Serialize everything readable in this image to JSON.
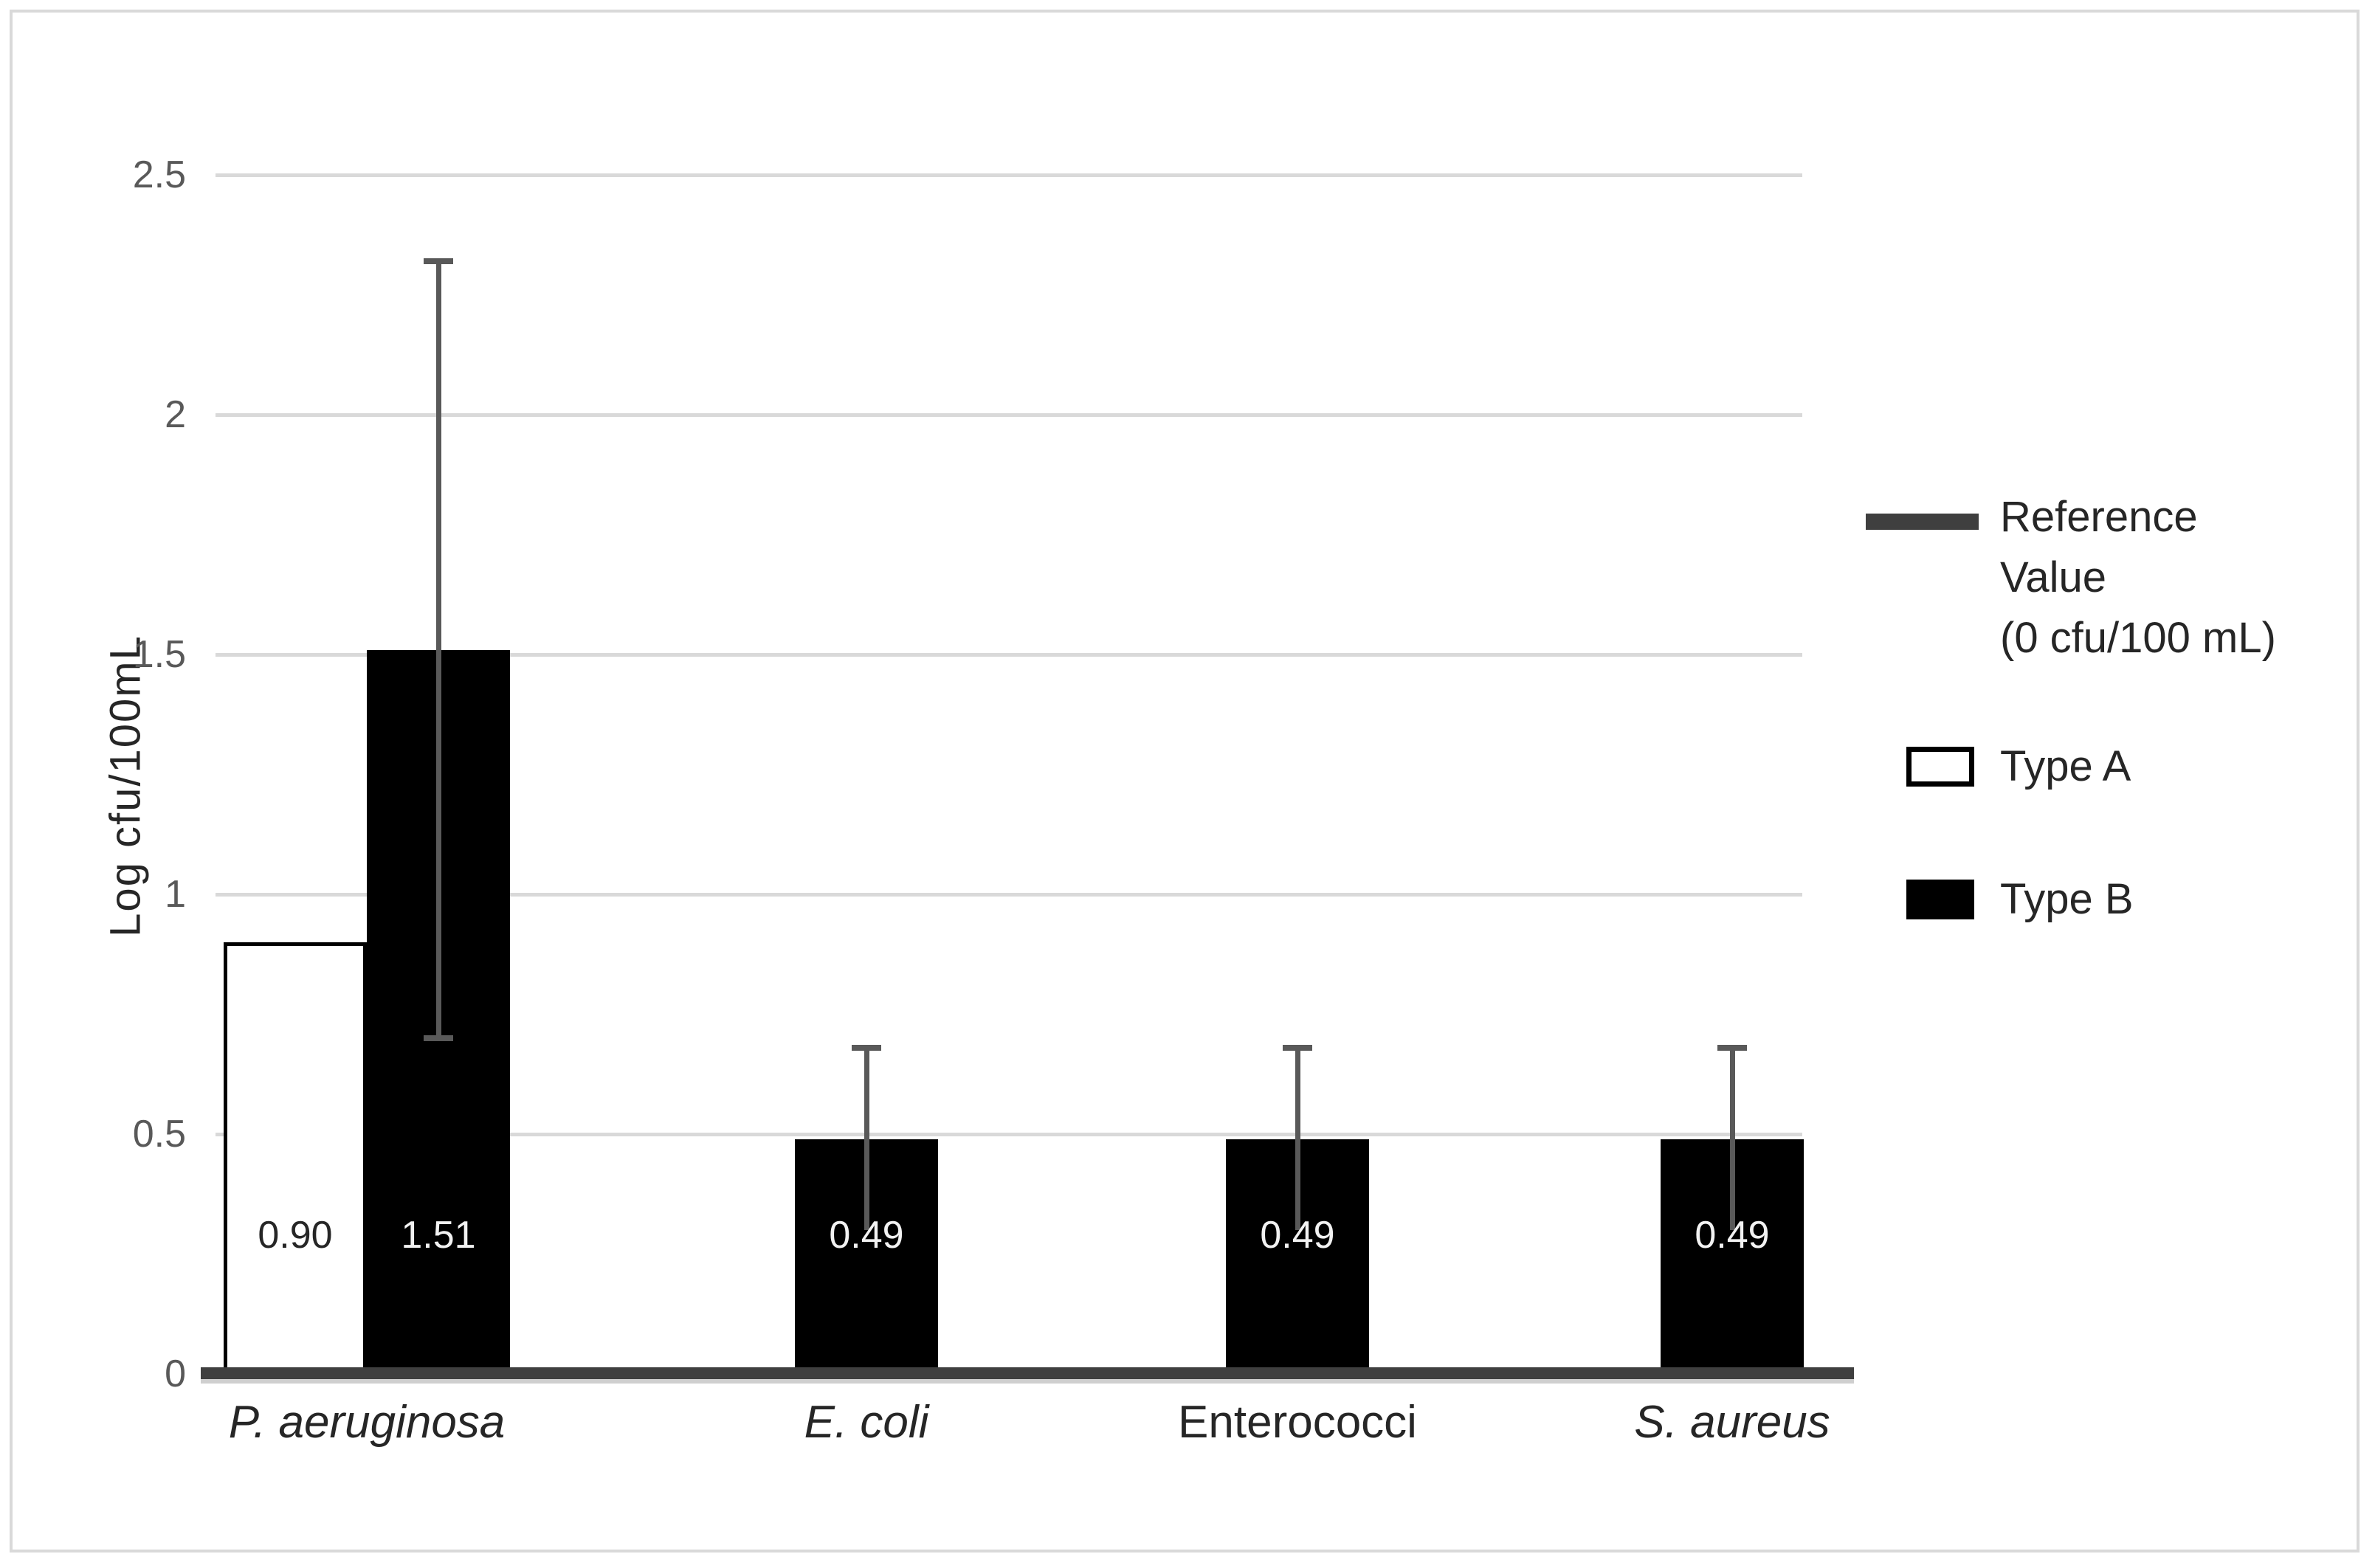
{
  "chart_data": {
    "type": "bar",
    "title": "",
    "xlabel": "",
    "ylabel": "Log cfu/100mL",
    "ylim": [
      0,
      2.5
    ],
    "ytick_values": [
      0,
      0.5,
      1,
      1.5,
      2,
      2.5
    ],
    "ytick_labels": [
      "0",
      "0.5",
      "1",
      "1.5",
      "2",
      "2.5"
    ],
    "grid": true,
    "legend_position": "right",
    "categories": [
      {
        "label": "P. aeruginosa",
        "italic": true
      },
      {
        "label": "E. coli",
        "italic": true
      },
      {
        "label": "Enterococci",
        "italic": false
      },
      {
        "label": "S. aureus",
        "italic": true
      }
    ],
    "series": [
      {
        "name": "Type A",
        "fill": "#ffffff",
        "border": "#000000",
        "label_color": "#262626"
      },
      {
        "name": "Type B",
        "fill": "#000000",
        "border": "#000000",
        "label_color": "#f2f2f2"
      }
    ],
    "bars": [
      {
        "category": 0,
        "series": 0,
        "value": 0.9,
        "label": "0.90"
      },
      {
        "category": 0,
        "series": 1,
        "value": 1.51,
        "label": "1.51",
        "error_upper": 2.32,
        "error_lower": 0.7,
        "cap_top": true,
        "cap_bottom": true
      },
      {
        "category": 1,
        "series": 1,
        "value": 0.49,
        "label": "0.49",
        "error_upper": 0.68,
        "error_lower": 0.3,
        "cap_top": true,
        "cap_bottom": false
      },
      {
        "category": 2,
        "series": 1,
        "value": 0.49,
        "label": "0.49",
        "error_upper": 0.68,
        "error_lower": 0.3,
        "cap_top": true,
        "cap_bottom": false
      },
      {
        "category": 3,
        "series": 1,
        "value": 0.49,
        "label": "0.49",
        "error_upper": 0.68,
        "error_lower": 0.3,
        "cap_top": true,
        "cap_bottom": false
      }
    ],
    "reference_line": {
      "value": 0,
      "description": "Reference Value (0 cfu/100 mL)"
    }
  },
  "legend": {
    "items": [
      {
        "type": "line",
        "label_lines": [
          "Reference",
          "Value",
          "(0 cfu/100 mL)"
        ]
      },
      {
        "type": "box",
        "label": "Type A"
      },
      {
        "type": "box",
        "label": "Type B"
      }
    ]
  },
  "colors": {
    "grid": "#d9d9d9",
    "axis_line": "#3f3f3f",
    "axis_line_shadow": "#cfcfcf",
    "error_bar": "#595959",
    "tick_text": "#595959",
    "text": "#262626",
    "bar_black": "#000000",
    "bar_white": "#ffffff",
    "frame_border": "#d9d9d9"
  }
}
